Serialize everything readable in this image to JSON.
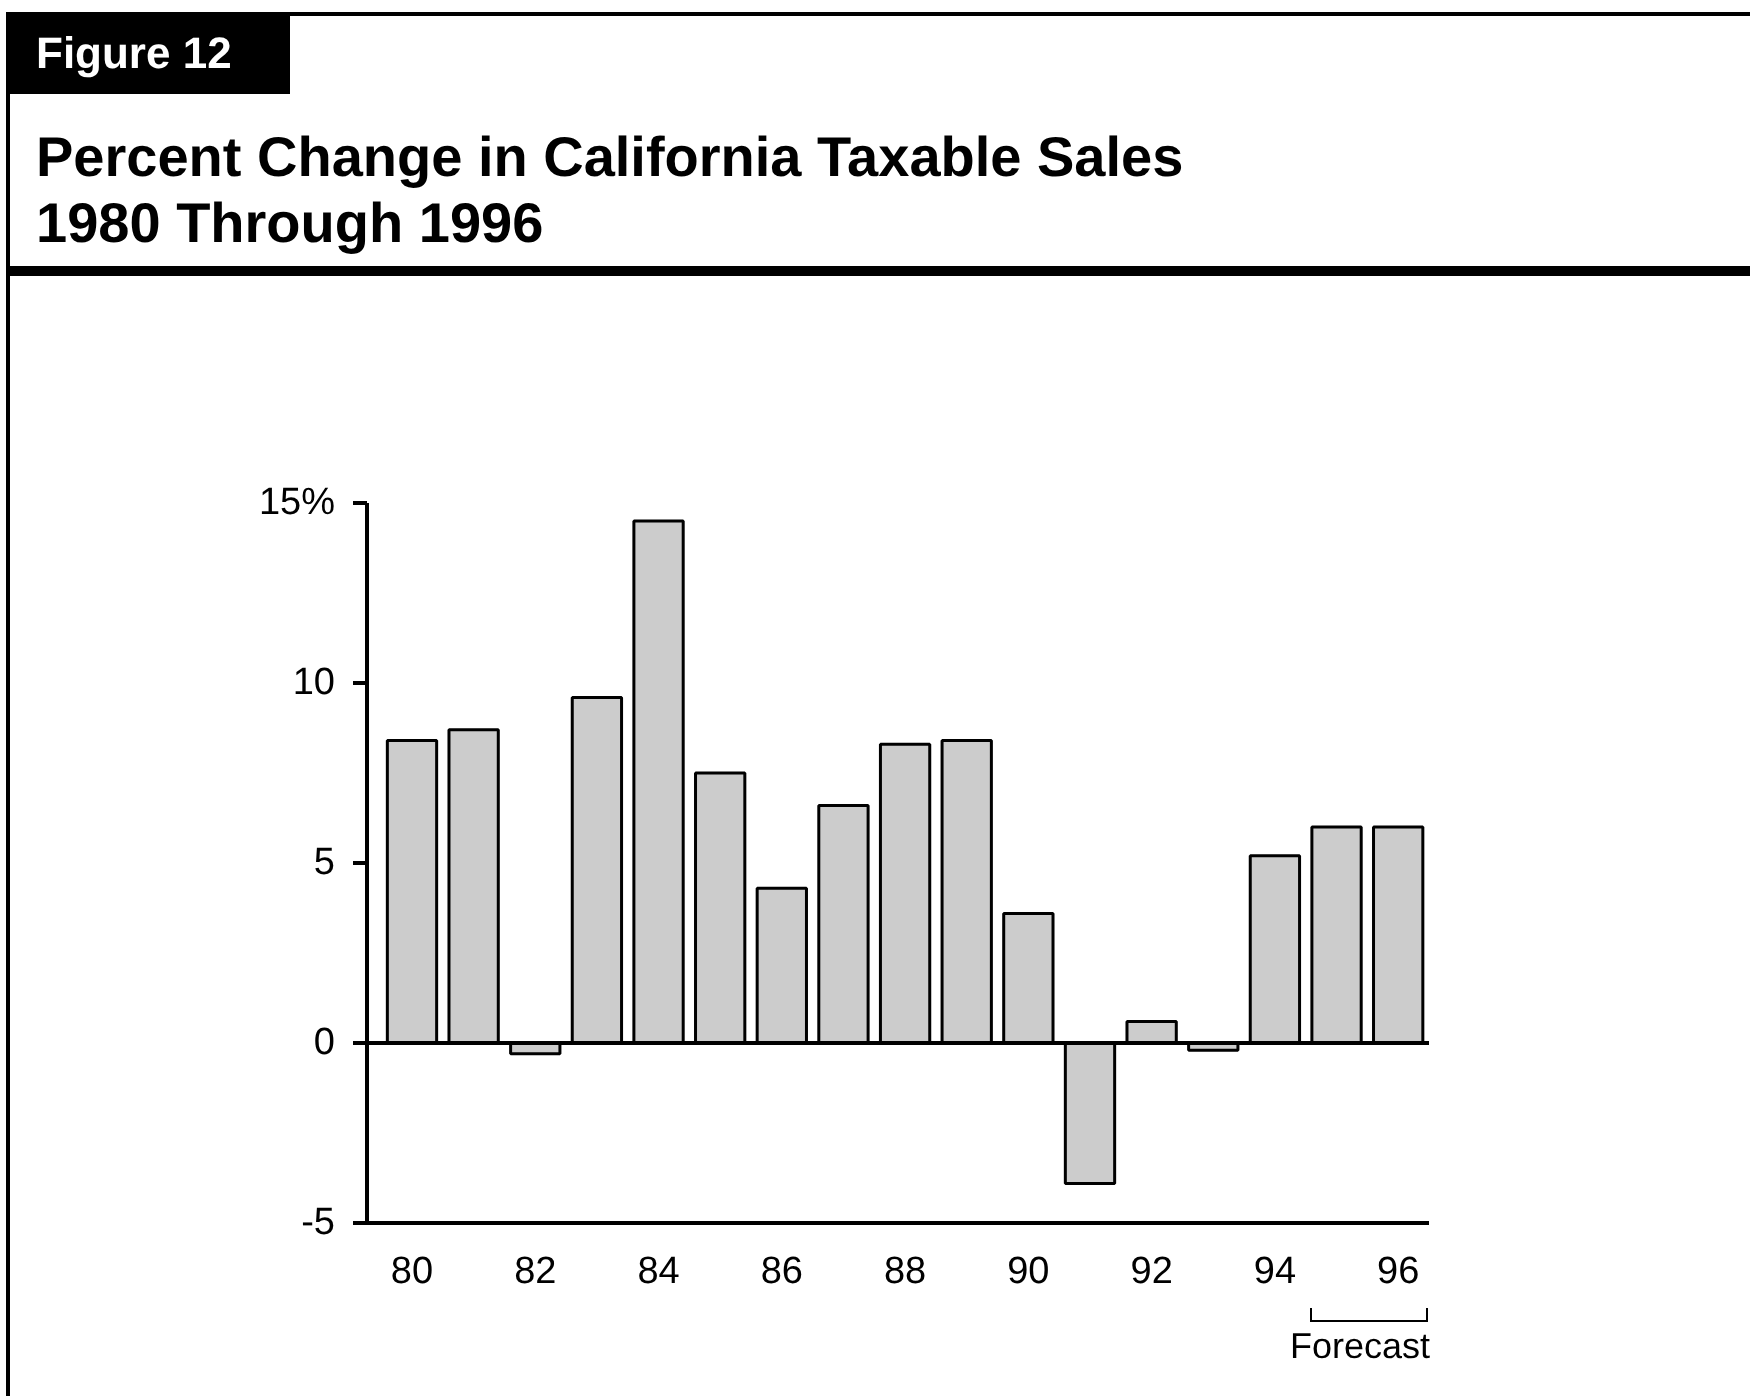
{
  "chart_data": {
    "type": "bar",
    "title": "Percent Change in California Taxable Sales\n1980 Through 1996",
    "categories": [
      "80",
      null,
      "82",
      null,
      "84",
      null,
      "86",
      null,
      "88",
      null,
      "90",
      null,
      "92",
      null,
      "94",
      null,
      "96"
    ],
    "values": [
      8.4,
      8.7,
      -0.3,
      9.6,
      14.5,
      7.5,
      4.3,
      6.6,
      8.3,
      8.4,
      3.6,
      -3.9,
      0.6,
      -0.2,
      5.2,
      6.0,
      6.0
    ],
    "color": "#cccccc",
    "ylim": [
      -5,
      15
    ],
    "yticks": [
      -5,
      0,
      5,
      10,
      {
        "value": 15,
        "label": "15%"
      }
    ],
    "ref_lines": [
      {
        "axis": "y",
        "value": 0,
        "color": "#000000"
      }
    ],
    "annotations": [
      "Figure 12",
      "Forecast"
    ]
  }
}
